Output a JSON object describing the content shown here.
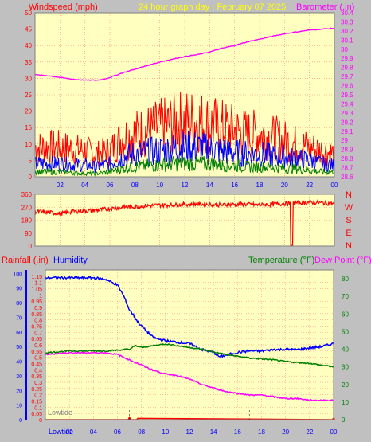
{
  "header": {
    "left_title": "Windspeed (mph)",
    "center_title": "24 hour graph day : February 07 2025",
    "right_title": "Barometer (.in)"
  },
  "colors": {
    "background": "#c0c0c0",
    "plot_bg": "#ffffc0",
    "grid": "#ff8080",
    "wind_gust": "#ff0000",
    "wind_avg": "#0000ff",
    "wind_low": "#008000",
    "barometer": "#ff00ff",
    "direction": "#ff0000",
    "rain": "#ff0000",
    "humidity": "#0000ff",
    "temperature": "#008000",
    "dewpoint": "#ff00ff",
    "title_yellow": "#ffff00"
  },
  "chart_data": [
    {
      "type": "line",
      "title": "24 hour graph day : February 07 2025",
      "ylabel": "Windspeed (mph)",
      "y2label": "Barometer (.in)",
      "x_ticks": [
        "02",
        "04",
        "06",
        "08",
        "10",
        "12",
        "14",
        "16",
        "18",
        "20",
        "22",
        "00"
      ],
      "ylim": [
        0,
        50
      ],
      "y_ticks": [
        0,
        5,
        10,
        15,
        20,
        25,
        30,
        35,
        40,
        45,
        50
      ],
      "y2lim": [
        28.6,
        30.4
      ],
      "y2_ticks": [
        "28.6",
        "28.7",
        "28.8",
        "28.9",
        "29",
        "29.1",
        "29.2",
        "29.3",
        "29.4",
        "29.5",
        "29.6",
        "29.7",
        "29.8",
        "29.9",
        "30",
        "30.1",
        "30.2",
        "30.3",
        "30.4"
      ],
      "series": [
        {
          "name": "",
          "color": "#ff00ff",
          "axis": "right",
          "x": [
            0,
            1,
            2,
            3,
            4,
            4.5,
            5,
            5.5,
            6,
            7,
            8,
            9,
            10,
            11,
            12,
            13,
            14,
            15,
            16,
            17,
            18,
            19,
            20,
            21,
            22,
            23,
            24
          ],
          "y": [
            29.72,
            29.71,
            29.69,
            29.67,
            29.66,
            29.66,
            29.66,
            29.67,
            29.69,
            29.74,
            29.78,
            29.82,
            29.86,
            29.89,
            29.92,
            29.94,
            29.97,
            30.01,
            30.04,
            30.08,
            30.11,
            30.14,
            30.17,
            30.19,
            30.21,
            30.22,
            30.23
          ]
        },
        {
          "name": "",
          "color": "#ff0000",
          "axis": "left",
          "x": [
            0,
            2,
            4,
            5,
            6,
            7,
            8,
            9,
            10,
            11,
            12,
            13,
            14,
            15,
            16,
            17,
            18,
            19,
            20,
            21,
            22,
            23,
            24
          ],
          "y": [
            9,
            9,
            8,
            7,
            8,
            12,
            13,
            14,
            15,
            16,
            17,
            17,
            16,
            15,
            14,
            13,
            13,
            12,
            11,
            10,
            9,
            8,
            7
          ]
        },
        {
          "name": "",
          "color": "#0000ff",
          "axis": "left",
          "x": [
            0,
            2,
            4,
            5,
            6,
            7,
            8,
            9,
            10,
            11,
            12,
            13,
            14,
            15,
            16,
            17,
            18,
            19,
            20,
            21,
            22,
            23,
            24
          ],
          "y": [
            4,
            4,
            3.5,
            3,
            4,
            6,
            7,
            7.5,
            8,
            8.5,
            9,
            9,
            8.5,
            8,
            7.5,
            7,
            7,
            6.5,
            6,
            5.5,
            5,
            4,
            3.5
          ]
        },
        {
          "name": "",
          "color": "#008000",
          "axis": "left",
          "x": [
            0,
            2,
            4,
            5,
            6,
            7,
            8,
            9,
            10,
            11,
            12,
            13,
            14,
            15,
            16,
            17,
            18,
            19,
            20,
            21,
            22,
            23,
            24
          ],
          "y": [
            1.5,
            1.5,
            1,
            1,
            1.5,
            2.5,
            3,
            3.5,
            3.5,
            4,
            4,
            4,
            4,
            3.5,
            3.5,
            3,
            3,
            3,
            2.5,
            2.5,
            2,
            1.5,
            1.5
          ]
        }
      ]
    },
    {
      "type": "line",
      "ylim": [
        0,
        360
      ],
      "y_ticks": [
        0,
        90,
        180,
        270,
        360
      ],
      "compass_labels": [
        "N",
        "W",
        "S",
        "E",
        "N"
      ],
      "series": [
        {
          "name": "",
          "color": "#ff0000",
          "x": [
            0,
            1,
            2,
            3,
            4,
            5,
            6,
            7,
            8,
            9,
            10,
            11,
            12,
            13,
            14,
            15,
            16,
            17,
            18,
            19,
            20,
            20.5,
            20.6,
            20.7,
            21,
            22,
            23,
            24
          ],
          "y": [
            240,
            235,
            225,
            240,
            245,
            250,
            260,
            270,
            275,
            280,
            285,
            285,
            290,
            290,
            290,
            285,
            290,
            290,
            285,
            290,
            295,
            295,
            5,
            300,
            300,
            305,
            300,
            295
          ]
        }
      ]
    },
    {
      "type": "line",
      "left_title": "Rainfall (.in)",
      "left_title2": "Humidity",
      "right_title": "Temperature (°F)",
      "right_title2": "Dew Point (°F)",
      "annotation_plot": "Lowtide",
      "annotation_axis": "Lowtide",
      "x_ticks": [
        "02",
        "04",
        "06",
        "08",
        "10",
        "12",
        "14",
        "16",
        "18",
        "20",
        "22",
        "00"
      ],
      "humidity_ticks": [
        0,
        10,
        20,
        30,
        40,
        50,
        60,
        70,
        80,
        90,
        100
      ],
      "rain_ticks": [
        "0",
        "0.05",
        "0.1",
        "0.15",
        "0.2",
        "0.25",
        "0.3",
        "0.35",
        "0.4",
        "0.45",
        "0.5",
        "0.55",
        "0.6",
        "0.65",
        "0.7",
        "0.75",
        "0.8",
        "0.85",
        "0.9",
        "0.95",
        "1",
        "1.05",
        "1.1",
        "1.15"
      ],
      "temp_ticks": [
        0,
        10,
        20,
        30,
        40,
        50,
        60,
        70,
        80
      ],
      "series": [
        {
          "name": "Humidity",
          "color": "#0000ff",
          "axis": "humidity",
          "x": [
            0,
            2,
            4,
            5,
            6,
            6.5,
            7,
            7.3,
            7.6,
            8,
            8.5,
            9,
            10,
            11,
            12,
            13,
            14,
            14.5,
            15,
            16,
            17,
            18,
            19,
            20,
            21,
            22,
            23,
            24
          ],
          "y": [
            97,
            97,
            97,
            96,
            92,
            85,
            75,
            72,
            68,
            64,
            60,
            56,
            54,
            53,
            52,
            48,
            46,
            43,
            44,
            46,
            47,
            47,
            48,
            48,
            48,
            49,
            50,
            52
          ]
        },
        {
          "name": "Temperature (°F)",
          "color": "#008000",
          "axis": "temp",
          "x": [
            0,
            2,
            4,
            5,
            6,
            7,
            7.5,
            8,
            9,
            10,
            11,
            12,
            13,
            14,
            15,
            16,
            17,
            18,
            19,
            20,
            21,
            22,
            23,
            24
          ],
          "y": [
            38,
            39,
            39,
            39,
            39.5,
            40,
            42,
            41,
            42,
            43,
            42,
            41,
            40,
            38.5,
            37,
            36,
            35,
            34.5,
            34,
            33,
            32.5,
            32,
            31,
            30
          ]
        },
        {
          "name": "Dew Point (°F)",
          "color": "#ff00ff",
          "axis": "temp",
          "x": [
            0,
            2,
            4,
            5,
            6,
            7,
            8,
            9,
            10,
            11,
            12,
            13,
            14,
            15,
            16,
            17,
            18,
            19,
            20,
            21,
            22,
            23,
            24
          ],
          "y": [
            37,
            38,
            38,
            38,
            37,
            34,
            31,
            28,
            26,
            25,
            23,
            20,
            18,
            16,
            15,
            14,
            14,
            13,
            12,
            12,
            11,
            11,
            11
          ]
        },
        {
          "name": "Rainfall (.in)",
          "color": "#ff0000",
          "axis": "rain",
          "x": [
            0,
            6.9,
            7,
            7.1,
            7.6,
            7.7,
            24
          ],
          "y": [
            0,
            0,
            0.02,
            0,
            0,
            0.01,
            0
          ]
        }
      ]
    }
  ]
}
